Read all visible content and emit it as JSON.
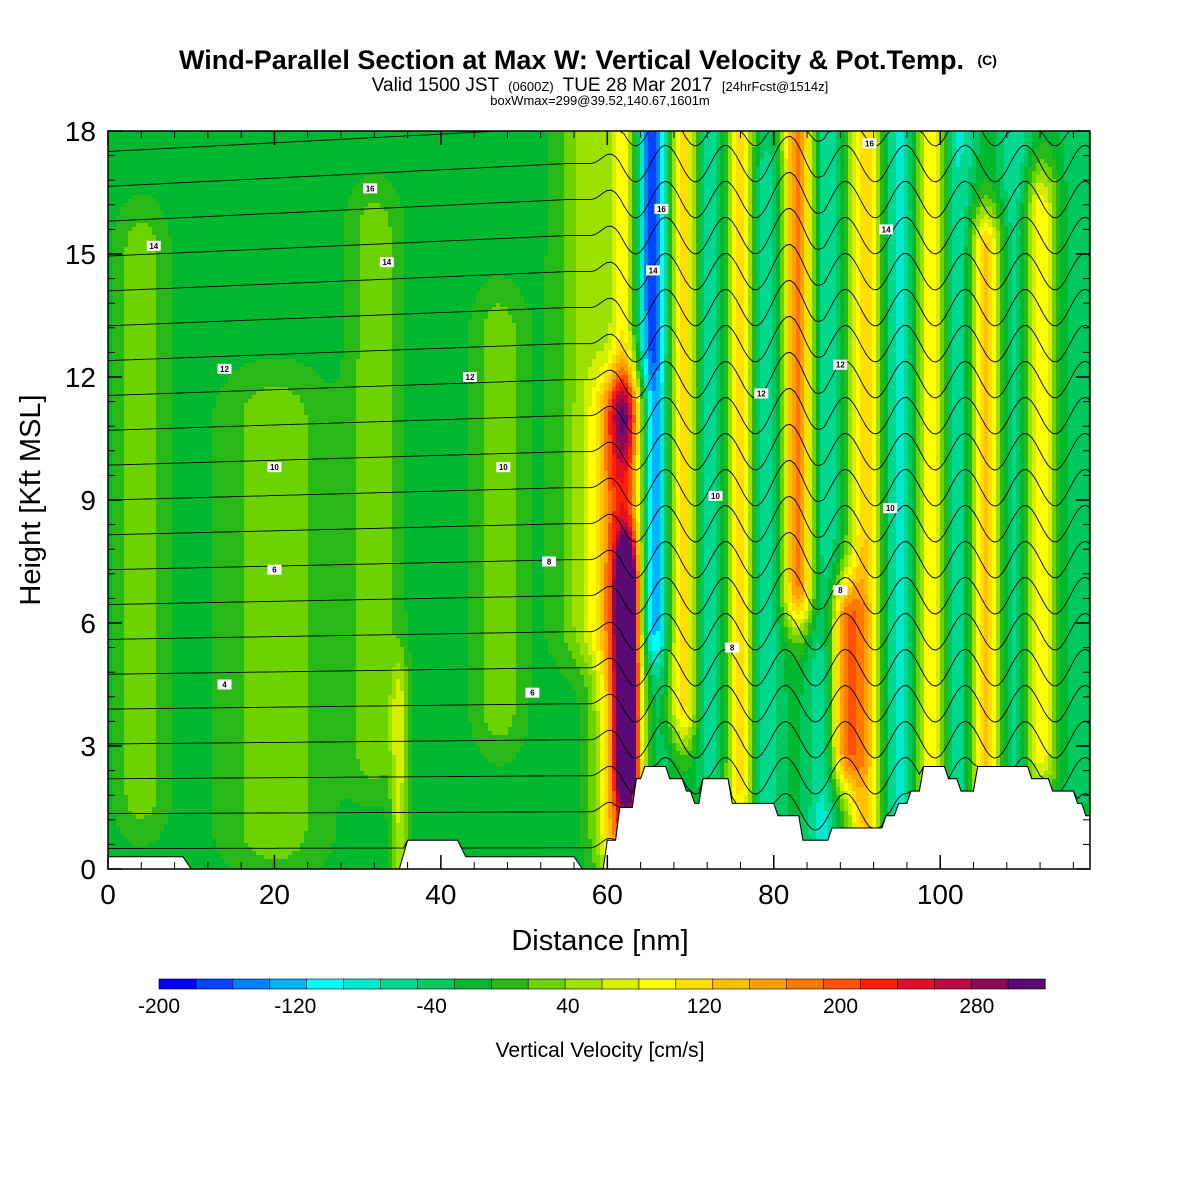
{
  "title": {
    "line1_main": "Wind-Parallel Section at Max W: Vertical Velocity & Pot.Temp.",
    "line1_mark": "(C)",
    "line2_a": "Valid 1500 JST",
    "line2_b": "(0600Z)",
    "line2_c": "TUE 28 Mar 2017",
    "line2_d": "[24hrFcst@1514z]",
    "line3": "boxWmax=299@39.52,140.67,1601m"
  },
  "chart_data": {
    "type": "heatmap",
    "xlabel": "Distance [nm]",
    "ylabel": "Height [Kft MSL]",
    "xlim": [
      0,
      118
    ],
    "ylim": [
      0,
      18
    ],
    "x_ticks": [
      0,
      20,
      40,
      60,
      80,
      100
    ],
    "y_ticks": [
      0,
      3,
      6,
      9,
      12,
      15,
      18
    ],
    "x_tick_labels": [
      "0",
      "20",
      "40",
      "60",
      "80",
      "100"
    ],
    "y_tick_labels": [
      "0",
      "3",
      "6",
      "9",
      "12",
      "15",
      "18"
    ],
    "colorbar": {
      "label": "Vertical Velocity [cm/s]",
      "min": -200,
      "max": 320,
      "step": 20,
      "tick_values": [
        -200,
        -120,
        -40,
        40,
        120,
        200,
        280
      ],
      "tick_labels": [
        "-200",
        "-120",
        "-40",
        "40",
        "120",
        "200",
        "280"
      ],
      "colors": [
        "#0000ff",
        "#0044ff",
        "#0080ff",
        "#00b4ff",
        "#00ffff",
        "#00e8d0",
        "#00d890",
        "#00c860",
        "#00b830",
        "#28b818",
        "#6cd200",
        "#9ce000",
        "#d4f000",
        "#ffff00",
        "#ffde00",
        "#ffc000",
        "#ffa000",
        "#ff7800",
        "#ff5000",
        "#ff2000",
        "#e0102a",
        "#b80a40",
        "#8c0a55",
        "#5a0a75"
      ]
    },
    "vertical_velocity_field": {
      "background_cm_s": -30,
      "features": [
        {
          "x": 4,
          "y_bottom": 2,
          "y_top": 15,
          "half_width_nm": 3,
          "w_cm_s": 15
        },
        {
          "x": 20,
          "y_bottom": 1,
          "y_top": 11,
          "half_width_nm": 6,
          "w_cm_s": 15
        },
        {
          "x": 32,
          "y_bottom": 3,
          "y_top": 15.5,
          "half_width_nm": 3,
          "w_cm_s": 15
        },
        {
          "x": 35,
          "y_bottom": 0.5,
          "y_top": 4,
          "half_width_nm": 1,
          "w_cm_s": 40
        },
        {
          "x": 47,
          "y_bottom": 4,
          "y_top": 13,
          "half_width_nm": 3,
          "w_cm_s": 15
        },
        {
          "x": 58,
          "y_bottom": 6,
          "y_top": 18,
          "half_width_nm": 4,
          "w_cm_s": 30
        },
        {
          "x": 62,
          "y_bottom": 1,
          "y_top": 11,
          "half_width_nm": 3,
          "w_cm_s": 170
        },
        {
          "x": 62.3,
          "y_bottom": 2.8,
          "y_top": 6.8,
          "half_width_nm": 1.2,
          "w_cm_s": 300
        },
        {
          "x": 62,
          "y_bottom": 11,
          "y_top": 18,
          "half_width_nm": 1.5,
          "w_cm_s": 60
        },
        {
          "x": 65.5,
          "y_bottom": 6,
          "y_top": 18,
          "half_width_nm": 1.5,
          "w_cm_s": -130
        },
        {
          "x": 65.5,
          "y_bottom": 3,
          "y_top": 18,
          "half_width_nm": 3,
          "w_cm_s": -80
        },
        {
          "x": 69,
          "y_bottom": 4,
          "y_top": 18,
          "half_width_nm": 1.8,
          "w_cm_s": 100
        },
        {
          "x": 72.5,
          "y_bottom": 3,
          "y_top": 18,
          "half_width_nm": 1.8,
          "w_cm_s": -80
        },
        {
          "x": 76,
          "y_bottom": 2,
          "y_top": 18,
          "half_width_nm": 1.8,
          "w_cm_s": 90
        },
        {
          "x": 79,
          "y_bottom": 1.5,
          "y_top": 17,
          "half_width_nm": 2,
          "w_cm_s": -80
        },
        {
          "x": 83,
          "y_bottom": 7,
          "y_top": 18,
          "half_width_nm": 2,
          "w_cm_s": 150
        },
        {
          "x": 86,
          "y_bottom": 1,
          "y_top": 18,
          "half_width_nm": 2,
          "w_cm_s": -90
        },
        {
          "x": 88.5,
          "y_bottom": 3,
          "y_top": 6,
          "half_width_nm": 2,
          "w_cm_s": 130
        },
        {
          "x": 91,
          "y_bottom": 1,
          "y_top": 18,
          "half_width_nm": 2,
          "w_cm_s": 100
        },
        {
          "x": 95,
          "y_bottom": 1,
          "y_top": 18,
          "half_width_nm": 2,
          "w_cm_s": -90
        },
        {
          "x": 99,
          "y_bottom": 2,
          "y_top": 18,
          "half_width_nm": 2,
          "w_cm_s": 80
        },
        {
          "x": 102,
          "y_bottom": 2,
          "y_top": 18,
          "half_width_nm": 2,
          "w_cm_s": -90
        },
        {
          "x": 105.5,
          "y_bottom": 2,
          "y_top": 15,
          "half_width_nm": 2,
          "w_cm_s": 110
        },
        {
          "x": 109,
          "y_bottom": 2,
          "y_top": 18,
          "half_width_nm": 2,
          "w_cm_s": -80
        },
        {
          "x": 112,
          "y_bottom": 3,
          "y_top": 16,
          "half_width_nm": 2,
          "w_cm_s": 80
        },
        {
          "x": 116,
          "y_bottom": 2,
          "y_top": 18,
          "half_width_nm": 2,
          "w_cm_s": -50
        }
      ]
    },
    "terrain_kft": {
      "x": [
        0,
        9,
        10,
        35,
        36,
        42,
        43,
        56,
        57,
        59.5,
        60,
        61,
        61.5,
        63,
        63.5,
        64,
        64.5,
        67,
        67.5,
        69,
        69.5,
        70,
        70.5,
        71,
        71.5,
        74.5,
        75,
        80,
        80.5,
        83,
        83.5,
        86.5,
        87,
        93,
        93.5,
        94.5,
        95,
        96,
        96.5,
        97.5,
        98,
        100.5,
        101,
        102,
        102.5,
        104,
        104.5,
        110.5,
        111,
        113,
        113.5,
        116,
        116.5,
        117,
        117.5,
        118
      ],
      "y": [
        0.3,
        0.3,
        0,
        0,
        0.7,
        0.7,
        0.3,
        0.3,
        0,
        0,
        0.7,
        0.7,
        1.5,
        1.5,
        2.2,
        2.2,
        2.5,
        2.5,
        2.2,
        2.2,
        1.9,
        1.9,
        1.6,
        1.6,
        2.2,
        2.2,
        1.6,
        1.6,
        1.3,
        1.3,
        0.7,
        0.7,
        1,
        1,
        1.3,
        1.3,
        1.6,
        1.6,
        1.9,
        1.9,
        2.5,
        2.5,
        2.2,
        2.2,
        1.9,
        1.9,
        2.5,
        2.5,
        2.2,
        2.2,
        1.9,
        1.9,
        1.6,
        1.6,
        1.3,
        1.3
      ]
    },
    "pot_temp_contours": {
      "labels": [
        {
          "text": "4",
          "x": 14,
          "y": 4.5
        },
        {
          "text": "6",
          "x": 20,
          "y": 7.3
        },
        {
          "text": "10",
          "x": 20,
          "y": 9.8
        },
        {
          "text": "12",
          "x": 14,
          "y": 12.2
        },
        {
          "text": "14",
          "x": 5.5,
          "y": 15.2
        },
        {
          "text": "16",
          "x": 31.5,
          "y": 16.6
        },
        {
          "text": "14",
          "x": 33.5,
          "y": 14.8
        },
        {
          "text": "12",
          "x": 43.5,
          "y": 12
        },
        {
          "text": "10",
          "x": 47.5,
          "y": 9.8
        },
        {
          "text": "8",
          "x": 53,
          "y": 7.5
        },
        {
          "text": "6",
          "x": 51,
          "y": 4.3
        },
        {
          "text": "16",
          "x": 66.5,
          "y": 16.1
        },
        {
          "text": "14",
          "x": 65.5,
          "y": 14.6
        },
        {
          "text": "12",
          "x": 78.5,
          "y": 11.6
        },
        {
          "text": "10",
          "x": 73,
          "y": 9.1
        },
        {
          "text": "8",
          "x": 75,
          "y": 5.4
        },
        {
          "text": "16",
          "x": 91.5,
          "y": 17.7
        },
        {
          "text": "14",
          "x": 93.5,
          "y": 15.6
        },
        {
          "text": "12",
          "x": 88,
          "y": 12.3
        },
        {
          "text": "10",
          "x": 94,
          "y": 8.8
        },
        {
          "text": "8",
          "x": 88,
          "y": 6.8
        }
      ]
    }
  }
}
